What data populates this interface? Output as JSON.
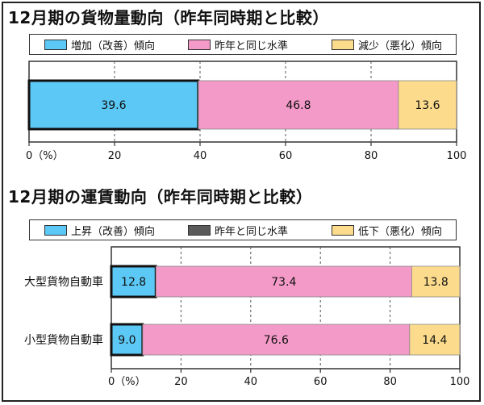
{
  "chart_data": [
    {
      "type": "bar",
      "orientation": "horizontal",
      "stacked": true,
      "title": "12月期の貨物量動向（昨年同時期と比較）",
      "legend": [
        {
          "label": "増加（改善）傾向",
          "color": "#5bc8f5"
        },
        {
          "label": "昨年と同じ水準",
          "color": "#f49ac8"
        },
        {
          "label": "減少（悪化）傾向",
          "color": "#fcdc8c"
        }
      ],
      "categories": [
        ""
      ],
      "series": [
        {
          "name": "増加（改善）傾向",
          "values": [
            39.6
          ]
        },
        {
          "name": "昨年と同じ水準",
          "values": [
            46.8
          ]
        },
        {
          "name": "減少（悪化）傾向",
          "values": [
            13.6
          ]
        }
      ],
      "xlim": [
        0,
        100
      ],
      "xticks": [
        "0（%）",
        "20",
        "40",
        "60",
        "80",
        "100"
      ],
      "grid": "vertical dashed",
      "highlight_series": 0
    },
    {
      "type": "bar",
      "orientation": "horizontal",
      "stacked": true,
      "title": "12月期の運賃動向（昨年同時期と比較）",
      "legend": [
        {
          "label": "上昇（改善）傾向",
          "color": "#5bc8f5"
        },
        {
          "label": "昨年と同じ水準",
          "color": "#5a5a5a"
        },
        {
          "label": "低下（悪化）傾向",
          "color": "#fcdc8c"
        }
      ],
      "categories": [
        "大型貨物自動車",
        "小型貨物自動車"
      ],
      "series": [
        {
          "name": "上昇（改善）傾向",
          "values": [
            12.8,
            9.0
          ]
        },
        {
          "name": "昨年と同じ水準",
          "values": [
            73.4,
            76.6
          ]
        },
        {
          "name": "低下（悪化）傾向",
          "values": [
            13.8,
            14.4
          ]
        }
      ],
      "segment_colors": [
        "#5bc8f5",
        "#f49ac8",
        "#fcdc8c"
      ],
      "xlim": [
        0,
        100
      ],
      "xticks": [
        "0（%）",
        "20",
        "40",
        "60",
        "80",
        "100"
      ],
      "grid": "vertical dashed",
      "highlight_series": 0
    }
  ]
}
